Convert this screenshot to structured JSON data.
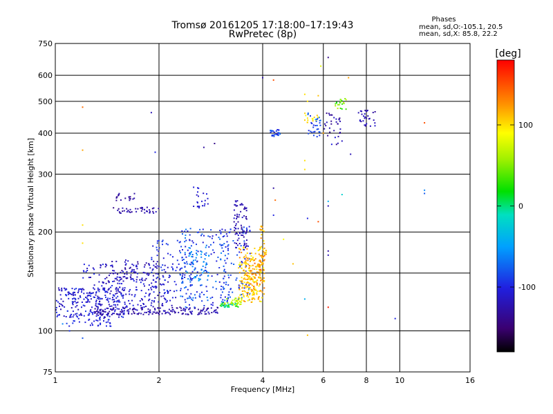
{
  "chart_data": {
    "type": "scatter",
    "title": "Tromsø 20161205 17:18:00–17:19:43",
    "subtitle": "RwPretec (8p)",
    "xlabel": "Frequency [MHz]",
    "ylabel": "Stationary phase Virtual Height [km]",
    "x_scale": "log",
    "y_scale": "log",
    "xlim": [
      1,
      16
    ],
    "ylim": [
      75,
      750
    ],
    "x_ticks": [
      "1",
      "2",
      "4",
      "6",
      "8",
      "10",
      "16"
    ],
    "x_gridlines": [
      1,
      2,
      4,
      6,
      8,
      10,
      16
    ],
    "y_ticks": [
      "75",
      "100",
      "200",
      "300",
      "400",
      "500",
      "600",
      "750"
    ],
    "y_gridlines": [
      75,
      100,
      150,
      200,
      300,
      400,
      500,
      600,
      750
    ],
    "grid": true,
    "phase_stats": {
      "title": "Phases",
      "line1": "mean, sd,O:-105.1, 20.5",
      "line2": "mean, sd,X:  85.8, 22.2"
    },
    "colorbar": {
      "label": "[deg]",
      "range": [
        -180,
        180
      ],
      "ticks": [
        "100",
        "0",
        "-100"
      ],
      "tick_values": [
        100,
        0,
        -100
      ]
    },
    "series": [
      {
        "clusters": [
          {
            "f": [
              1.0,
              1.6
            ],
            "h": [
              110,
              135
            ],
            "p": [
              -125,
              -90
            ],
            "n": 230
          },
          {
            "f": [
              1.05,
              1.45
            ],
            "h": [
              103,
              112
            ],
            "p": [
              -110,
              -90
            ],
            "n": 40
          },
          {
            "f": [
              1.3,
              3.0
            ],
            "h": [
              112,
              118
            ],
            "p": [
              -140,
              -110
            ],
            "n": 180
          },
          {
            "f": [
              1.2,
              2.2
            ],
            "h": [
              118,
              160
            ],
            "p": [
              -125,
              -95
            ],
            "n": 210
          },
          {
            "f": [
              1.4,
              2.0
            ],
            "h": [
              140,
              165
            ],
            "p": [
              -140,
              -110
            ],
            "n": 60
          },
          {
            "f": [
              1.9,
              2.5
            ],
            "h": [
              125,
              190
            ],
            "p": [
              -115,
              -85
            ],
            "n": 90
          },
          {
            "f": [
              2.3,
              3.2
            ],
            "h": [
              118,
              205
            ],
            "p": [
              -110,
              -60
            ],
            "n": 170
          },
          {
            "f": [
              2.4,
              2.8
            ],
            "h": [
              140,
              180
            ],
            "p": [
              -75,
              -40
            ],
            "n": 45
          },
          {
            "f": [
              3.0,
              3.7
            ],
            "h": [
              120,
              210
            ],
            "p": [
              -110,
              -70
            ],
            "n": 100
          },
          {
            "f": [
              3.3,
              3.6
            ],
            "h": [
              175,
              250
            ],
            "p": [
              -135,
              -110
            ],
            "n": 70
          },
          {
            "f": [
              1.45,
              2.0
            ],
            "h": [
              228,
              238
            ],
            "p": [
              -140,
              -115
            ],
            "n": 40
          },
          {
            "f": [
              1.5,
              1.7
            ],
            "h": [
              248,
              262
            ],
            "p": [
              -140,
              -120
            ],
            "n": 18
          },
          {
            "f": [
              2.5,
              2.8
            ],
            "h": [
              236,
              275
            ],
            "p": [
              -115,
              -95
            ],
            "n": 22
          },
          {
            "f": [
              3.0,
              3.4
            ],
            "h": [
              118,
              122
            ],
            "p": [
              -20,
              40
            ],
            "n": 25
          },
          {
            "f": [
              3.1,
              3.5
            ],
            "h": [
              120,
              126
            ],
            "p": [
              50,
              80
            ],
            "n": 35
          },
          {
            "f": [
              3.4,
              4.05
            ],
            "h": [
              122,
              180
            ],
            "p": [
              85,
              130
            ],
            "n": 230
          },
          {
            "f": [
              3.6,
              4.05
            ],
            "h": [
              135,
              170
            ],
            "p": [
              110,
              145
            ],
            "n": 50
          },
          {
            "f": [
              3.9,
              4.1
            ],
            "h": [
              160,
              210
            ],
            "p": [
              90,
              130
            ],
            "n": 25
          },
          {
            "f": [
              4.2,
              4.5
            ],
            "h": [
              390,
              410
            ],
            "p": [
              -110,
              -70
            ],
            "n": 25
          },
          {
            "f": [
              5.4,
              5.9
            ],
            "h": [
              390,
              460
            ],
            "p": [
              -100,
              -70
            ],
            "n": 30
          },
          {
            "f": [
              5.3,
              5.8
            ],
            "h": [
              430,
              460
            ],
            "p": [
              90,
              110
            ],
            "n": 15
          },
          {
            "f": [
              6.5,
              7.0
            ],
            "h": [
              470,
              510
            ],
            "p": [
              20,
              70
            ],
            "n": 20
          },
          {
            "f": [
              6.0,
              6.8
            ],
            "h": [
              410,
              460
            ],
            "p": [
              -140,
              -110
            ],
            "n": 20
          },
          {
            "f": [
              7.5,
              8.5
            ],
            "h": [
              420,
              470
            ],
            "p": [
              -135,
              -110
            ],
            "n": 30
          },
          {
            "f": [
              6.1,
              6.8
            ],
            "h": [
              360,
              420
            ],
            "p": [
              -140,
              -100
            ],
            "n": 12
          }
        ],
        "points": [
          [
            1.2,
            480,
            140
          ],
          [
            1.2,
            355,
            120
          ],
          [
            1.2,
            210,
            100
          ],
          [
            1.2,
            185,
            100
          ],
          [
            1.2,
            95,
            -80
          ],
          [
            1.1,
            100,
            -95
          ],
          [
            1.05,
            105,
            -60
          ],
          [
            1.9,
            462,
            -120
          ],
          [
            1.95,
            350,
            -100
          ],
          [
            2.7,
            362,
            -130
          ],
          [
            2.9,
            372,
            -140
          ],
          [
            4.0,
            590,
            -125
          ],
          [
            4.3,
            580,
            150
          ],
          [
            4.3,
            272,
            -130
          ],
          [
            4.35,
            250,
            140
          ],
          [
            4.3,
            225,
            -100
          ],
          [
            4.6,
            190,
            90
          ],
          [
            4.9,
            160,
            110
          ],
          [
            5.3,
            525,
            100
          ],
          [
            5.4,
            500,
            100
          ],
          [
            5.7,
            440,
            -40
          ],
          [
            5.9,
            640,
            80
          ],
          [
            5.8,
            520,
            110
          ],
          [
            6.0,
            400,
            120
          ],
          [
            5.3,
            330,
            100
          ],
          [
            5.3,
            310,
            100
          ],
          [
            5.4,
            220,
            -100
          ],
          [
            5.8,
            215,
            150
          ],
          [
            5.3,
            125,
            -40
          ],
          [
            5.4,
            97,
            110
          ],
          [
            6.2,
            680,
            -140
          ],
          [
            6.2,
            248,
            -40
          ],
          [
            6.2,
            240,
            -120
          ],
          [
            6.2,
            175,
            -130
          ],
          [
            6.2,
            170,
            -120
          ],
          [
            6.2,
            118,
            170
          ],
          [
            6.7,
            400,
            -130
          ],
          [
            6.8,
            260,
            -20
          ],
          [
            7.1,
            590,
            120
          ],
          [
            7.2,
            345,
            -120
          ],
          [
            9.7,
            109,
            -100
          ],
          [
            11.8,
            430,
            150
          ],
          [
            11.8,
            268,
            -60
          ],
          [
            11.8,
            262,
            -80
          ]
        ]
      }
    ]
  }
}
